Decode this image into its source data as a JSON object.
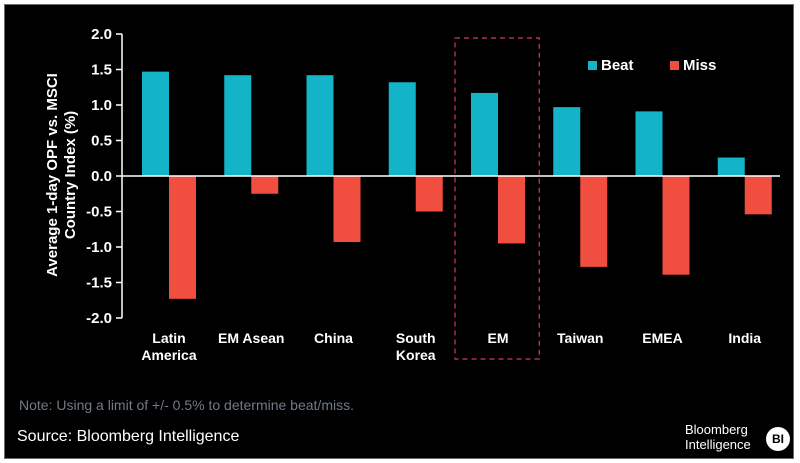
{
  "chart_data": {
    "type": "bar",
    "ylabel_lines": [
      "Average 1-day OPF vs. MSCI",
      "Country Index (%)"
    ],
    "categories": [
      [
        "Latin",
        "America"
      ],
      [
        "EM Asean"
      ],
      [
        "China"
      ],
      [
        "South",
        "Korea"
      ],
      [
        "EM"
      ],
      [
        "Taiwan"
      ],
      [
        "EMEA"
      ],
      [
        "India"
      ]
    ],
    "series": [
      {
        "name": "Beat",
        "color": "#14b4c8",
        "values": [
          1.47,
          1.42,
          1.42,
          1.32,
          1.17,
          0.97,
          0.91,
          0.26
        ]
      },
      {
        "name": "Miss",
        "color": "#f04e3e",
        "values": [
          -1.73,
          -0.25,
          -0.93,
          -0.5,
          -0.95,
          -1.28,
          -1.39,
          -0.54
        ]
      }
    ],
    "ylim": [
      -2.0,
      2.0
    ],
    "yticks": [
      "2.0",
      "1.5",
      "1.0",
      "0.5",
      "0.0",
      "-0.5",
      "-1.0",
      "-1.5",
      "-2.0"
    ],
    "highlight_category": 4,
    "highlight_color": "#d2386b",
    "legend_position": "top-right",
    "grid": false
  },
  "footer": {
    "note": "Note: Using a limit of +/- 0.5% to determine beat/miss.",
    "source": "Source: Bloomberg Intelligence"
  },
  "logo": {
    "line1": "Bloomberg",
    "line2": "Intelligence",
    "badge": "BI"
  }
}
